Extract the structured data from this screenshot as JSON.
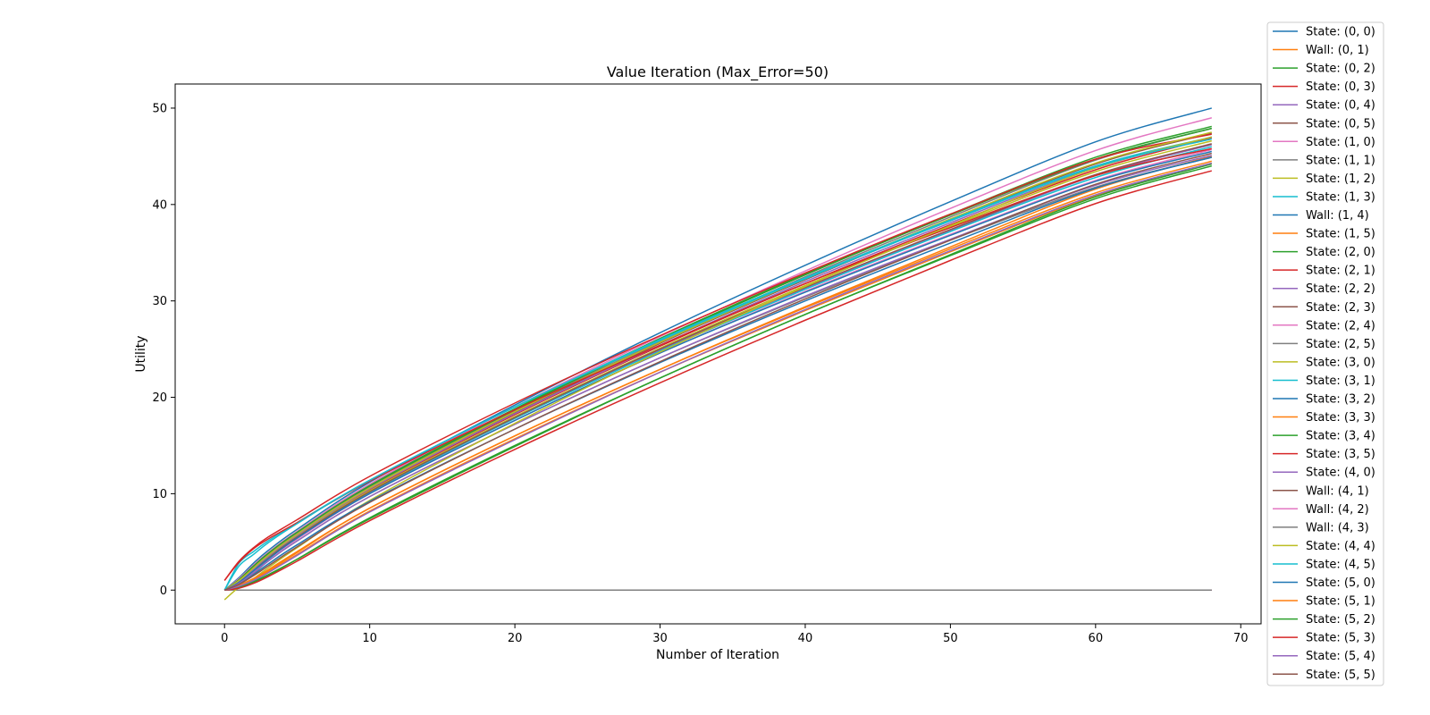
{
  "chart_data": {
    "type": "line",
    "title": "Value Iteration (Max_Error=50)",
    "xlabel": "Number of Iteration",
    "ylabel": "Utility",
    "xlim": [
      -3.4,
      71.4
    ],
    "ylim": [
      -3.5,
      52.5
    ],
    "xticks": [
      0,
      10,
      20,
      30,
      40,
      50,
      60,
      70
    ],
    "yticks": [
      0,
      10,
      20,
      30,
      40,
      50
    ],
    "grid": false,
    "legend_position": "outside-right",
    "palette": [
      "#1f77b4",
      "#ff7f0e",
      "#2ca02c",
      "#d62728",
      "#9467bd",
      "#8c564b",
      "#e377c2",
      "#7f7f7f",
      "#bcbd22",
      "#17becf"
    ],
    "x_knots": [
      0,
      1,
      2,
      3,
      5,
      10,
      20,
      30,
      40,
      50,
      60,
      68
    ],
    "series": [
      {
        "name": "State: (0, 0)",
        "values": [
          0,
          1.3,
          2.8,
          4.1,
          6.3,
          11.2,
          19.2,
          26.7,
          33.7,
          40.3,
          46.5,
          50.0
        ]
      },
      {
        "name": "Wall: (0, 1)",
        "values": [
          0,
          0,
          0,
          0,
          0,
          0,
          0,
          0,
          0,
          0,
          0,
          0
        ]
      },
      {
        "name": "State: (0, 2)",
        "values": [
          0,
          1.1,
          2.5,
          3.8,
          6.0,
          10.9,
          18.8,
          26.1,
          32.8,
          39.0,
          44.9,
          48.1
        ]
      },
      {
        "name": "State: (0, 3)",
        "values": [
          0,
          0.9,
          2.2,
          3.5,
          5.7,
          10.4,
          18.2,
          25.3,
          31.8,
          37.9,
          43.6,
          46.9
        ]
      },
      {
        "name": "State: (0, 4)",
        "values": [
          0,
          0.8,
          2.0,
          3.3,
          5.5,
          10.2,
          17.9,
          24.9,
          31.3,
          37.3,
          43.0,
          46.2
        ]
      },
      {
        "name": "State: (0, 5)",
        "values": [
          0,
          1.0,
          2.3,
          3.6,
          5.8,
          10.6,
          18.4,
          25.6,
          32.2,
          38.4,
          44.2,
          47.4
        ]
      },
      {
        "name": "State: (1, 0)",
        "values": [
          0,
          1.2,
          2.6,
          3.9,
          6.1,
          11.0,
          19.0,
          26.3,
          33.1,
          39.6,
          45.6,
          49.0
        ]
      },
      {
        "name": "State: (1, 1)",
        "values": [
          0,
          1.0,
          2.4,
          3.7,
          5.9,
          10.7,
          18.6,
          25.8,
          32.5,
          38.7,
          44.6,
          47.9
        ]
      },
      {
        "name": "State: (1, 2)",
        "values": [
          0,
          0.9,
          2.1,
          3.4,
          5.6,
          10.3,
          18.0,
          25.1,
          31.6,
          37.7,
          43.4,
          46.6
        ]
      },
      {
        "name": "State: (1, 3)",
        "values": [
          0,
          0.8,
          2.0,
          3.3,
          5.4,
          10.1,
          17.8,
          24.8,
          31.2,
          37.2,
          42.8,
          46.0
        ]
      },
      {
        "name": "Wall: (1, 4)",
        "values": [
          0,
          0,
          0,
          0,
          0,
          0,
          0,
          0,
          0,
          0,
          0,
          0
        ]
      },
      {
        "name": "State: (1, 5)",
        "values": [
          0,
          0.5,
          1.2,
          2.0,
          3.9,
          8.5,
          16.0,
          22.9,
          29.4,
          35.6,
          41.6,
          45.0
        ]
      },
      {
        "name": "State: (2, 0)",
        "values": [
          0,
          1.1,
          2.5,
          3.8,
          6.0,
          10.8,
          18.7,
          26.0,
          32.7,
          38.9,
          44.7,
          47.9
        ]
      },
      {
        "name": "State: (2, 1)",
        "values": [
          1,
          3.0,
          4.4,
          5.5,
          7.3,
          11.8,
          19.4,
          26.4,
          32.9,
          39.0,
          44.7,
          47.3
        ]
      },
      {
        "name": "State: (2, 2)",
        "values": [
          0,
          0.9,
          2.2,
          3.5,
          5.7,
          10.5,
          18.3,
          25.4,
          32.0,
          38.1,
          43.8,
          47.0
        ]
      },
      {
        "name": "State: (2, 3)",
        "values": [
          0,
          0.8,
          2.0,
          3.3,
          5.5,
          10.2,
          17.9,
          25.0,
          31.4,
          37.4,
          43.1,
          46.3
        ]
      },
      {
        "name": "State: (2, 4)",
        "values": [
          0,
          0.7,
          1.9,
          3.2,
          5.3,
          10.0,
          17.6,
          24.6,
          31.0,
          36.9,
          42.5,
          45.7
        ]
      },
      {
        "name": "State: (2, 5)",
        "values": [
          0,
          0.6,
          1.7,
          3.0,
          5.1,
          9.7,
          17.2,
          24.1,
          30.4,
          36.3,
          41.8,
          44.9
        ]
      },
      {
        "name": "State: (3, 0)",
        "values": [
          0,
          1.0,
          2.3,
          3.6,
          5.8,
          10.6,
          18.5,
          25.7,
          32.3,
          38.5,
          44.3,
          47.5
        ]
      },
      {
        "name": "State: (3, 1)",
        "values": [
          0,
          2.8,
          4.0,
          5.1,
          7.0,
          11.4,
          19.0,
          26.0,
          32.4,
          38.4,
          44.0,
          47.0
        ]
      },
      {
        "name": "State: (3, 2)",
        "values": [
          0,
          0.8,
          2.0,
          3.2,
          5.4,
          10.0,
          17.6,
          24.6,
          30.9,
          36.8,
          42.4,
          45.5
        ]
      },
      {
        "name": "State: (3, 3)",
        "values": [
          0,
          0.5,
          1.1,
          1.9,
          3.7,
          8.2,
          15.7,
          22.6,
          29.0,
          35.1,
          40.9,
          44.3
        ]
      },
      {
        "name": "State: (3, 4)",
        "values": [
          0,
          0.3,
          0.8,
          1.5,
          3.2,
          7.5,
          15.0,
          22.0,
          28.6,
          34.7,
          40.6,
          44.0
        ]
      },
      {
        "name": "State: (3, 5)",
        "values": [
          1,
          2.9,
          4.3,
          5.3,
          7.0,
          11.3,
          18.7,
          25.4,
          31.8,
          37.6,
          43.0,
          45.8
        ]
      },
      {
        "name": "State: (4, 0)",
        "values": [
          0,
          0.7,
          1.8,
          3.0,
          5.1,
          9.7,
          17.2,
          24.1,
          30.5,
          36.4,
          42.0,
          45.1
        ]
      },
      {
        "name": "Wall: (4, 1)",
        "values": [
          0,
          0,
          0,
          0,
          0,
          0,
          0,
          0,
          0,
          0,
          0,
          0
        ]
      },
      {
        "name": "Wall: (4, 2)",
        "values": [
          0,
          0,
          0,
          0,
          0,
          0,
          0,
          0,
          0,
          0,
          0,
          0
        ]
      },
      {
        "name": "Wall: (4, 3)",
        "values": [
          0,
          0,
          0,
          0,
          0,
          0,
          0,
          0,
          0,
          0,
          0,
          0
        ]
      },
      {
        "name": "State: (4, 4)",
        "values": [
          -1,
          0.3,
          1.2,
          2.3,
          4.4,
          9.3,
          17.3,
          24.7,
          31.5,
          37.8,
          43.8,
          47.0
        ]
      },
      {
        "name": "State: (4, 5)",
        "values": [
          0,
          2.5,
          3.7,
          4.9,
          6.9,
          11.4,
          19.0,
          25.9,
          32.3,
          38.3,
          43.9,
          46.8
        ]
      },
      {
        "name": "State: (5, 0)",
        "values": [
          0,
          0.6,
          1.6,
          2.7,
          4.7,
          9.2,
          16.7,
          23.6,
          30.0,
          36.0,
          41.7,
          44.9
        ]
      },
      {
        "name": "State: (5, 1)",
        "values": [
          0,
          0.5,
          1.2,
          2.1,
          4.0,
          8.5,
          16.0,
          22.9,
          29.3,
          35.4,
          41.2,
          44.5
        ]
      },
      {
        "name": "State: (5, 2)",
        "values": [
          0,
          0.3,
          0.9,
          1.6,
          3.2,
          7.4,
          14.9,
          22.0,
          28.6,
          34.8,
          40.8,
          44.2
        ]
      },
      {
        "name": "State: (5, 3)",
        "values": [
          0,
          0.2,
          0.7,
          1.4,
          3.0,
          7.2,
          14.6,
          21.5,
          28.0,
          34.2,
          40.1,
          43.5
        ]
      },
      {
        "name": "State: (5, 4)",
        "values": [
          0,
          0.4,
          1.0,
          1.8,
          3.6,
          8.1,
          15.6,
          22.6,
          29.1,
          35.2,
          41.0,
          44.3
        ]
      },
      {
        "name": "State: (5, 5)",
        "values": [
          0,
          0.6,
          1.5,
          2.5,
          4.5,
          9.1,
          16.7,
          23.7,
          30.2,
          36.3,
          42.1,
          45.3
        ]
      }
    ]
  }
}
